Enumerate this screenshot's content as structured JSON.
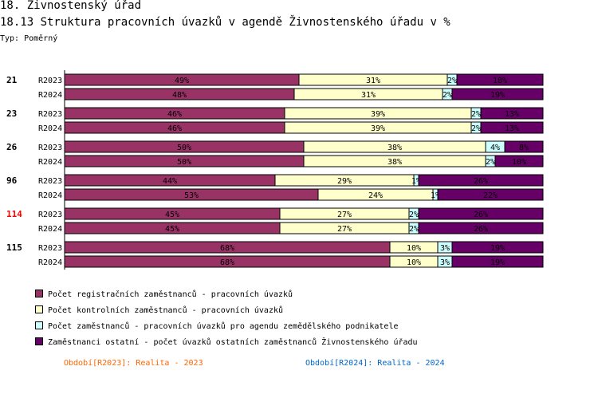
{
  "header": {
    "chapter": "18. Živnostenský úřad",
    "title": "18.13 Struktura pracovních úvazků v agendě Živnostenského úřadu v %",
    "type_label": "Typ: Poměrný"
  },
  "colors": {
    "registracni": "#993366",
    "kontrolni": "#ffffcc",
    "zemedelsky": "#ccffff",
    "ostatni": "#660066",
    "highlight_group": "#ff0000",
    "legend_2023": "#ff6600",
    "legend_2024": "#0066cc"
  },
  "chart_data": {
    "type": "bar",
    "orientation": "horizontal",
    "stacked": "percent",
    "xlim": [
      0,
      100
    ],
    "groups": [
      {
        "label": "21",
        "highlight": false,
        "rows": [
          {
            "label": "R2023",
            "values": [
              49,
              31,
              2,
              18
            ]
          },
          {
            "label": "R2024",
            "values": [
              48,
              31,
              2,
              19
            ]
          }
        ]
      },
      {
        "label": "23",
        "highlight": false,
        "rows": [
          {
            "label": "R2023",
            "values": [
              46,
              39,
              2,
              13
            ]
          },
          {
            "label": "R2024",
            "values": [
              46,
              39,
              2,
              13
            ]
          }
        ]
      },
      {
        "label": "26",
        "highlight": false,
        "rows": [
          {
            "label": "R2023",
            "values": [
              50,
              38,
              4,
              8
            ]
          },
          {
            "label": "R2024",
            "values": [
              50,
              38,
              2,
              10
            ]
          }
        ]
      },
      {
        "label": "96",
        "highlight": false,
        "rows": [
          {
            "label": "R2023",
            "values": [
              44,
              29,
              1,
              26
            ]
          },
          {
            "label": "R2024",
            "values": [
              53,
              24,
              1,
              22
            ]
          }
        ]
      },
      {
        "label": "114",
        "highlight": true,
        "rows": [
          {
            "label": "R2023",
            "values": [
              45,
              27,
              2,
              26
            ]
          },
          {
            "label": "R2024",
            "values": [
              45,
              27,
              2,
              26
            ]
          }
        ]
      },
      {
        "label": "115",
        "highlight": false,
        "rows": [
          {
            "label": "R2023",
            "values": [
              68,
              10,
              3,
              19
            ]
          },
          {
            "label": "R2024",
            "values": [
              68,
              10,
              3,
              19
            ]
          }
        ]
      }
    ],
    "series": [
      {
        "name": "Počet registračních zaměstnanců - pracovních úvazků",
        "color_key": "registracni"
      },
      {
        "name": "Počet kontrolních zaměstnanců - pracovních úvazků",
        "color_key": "kontrolni"
      },
      {
        "name": "Počet zaměstnanců - pracovních úvazků pro agendu zemědělského podnikatele",
        "color_key": "zemedelsky"
      },
      {
        "name": "Zaměstnanci ostatní - počet úvazků ostatních zaměstnanců Živnostenského úřadu",
        "color_key": "ostatni"
      }
    ],
    "value_label_suffix": "%"
  },
  "footer": {
    "period_2023": "Období[R2023]: Realita - 2023",
    "period_2024": "Období[R2024]: Realita - 2024"
  }
}
